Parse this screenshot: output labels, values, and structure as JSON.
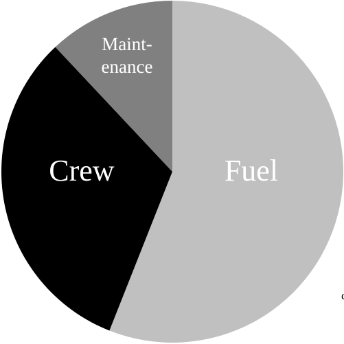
{
  "chart_data": {
    "type": "pie",
    "categories": [
      "Fuel",
      "Crew",
      [
        "Maint-",
        "enance"
      ]
    ],
    "values": [
      56,
      32,
      12
    ],
    "colors": [
      "#c0c0c0",
      "#000000",
      "#808080"
    ],
    "start_angle": 0,
    "direction": "clockwise",
    "annotation": "c"
  }
}
